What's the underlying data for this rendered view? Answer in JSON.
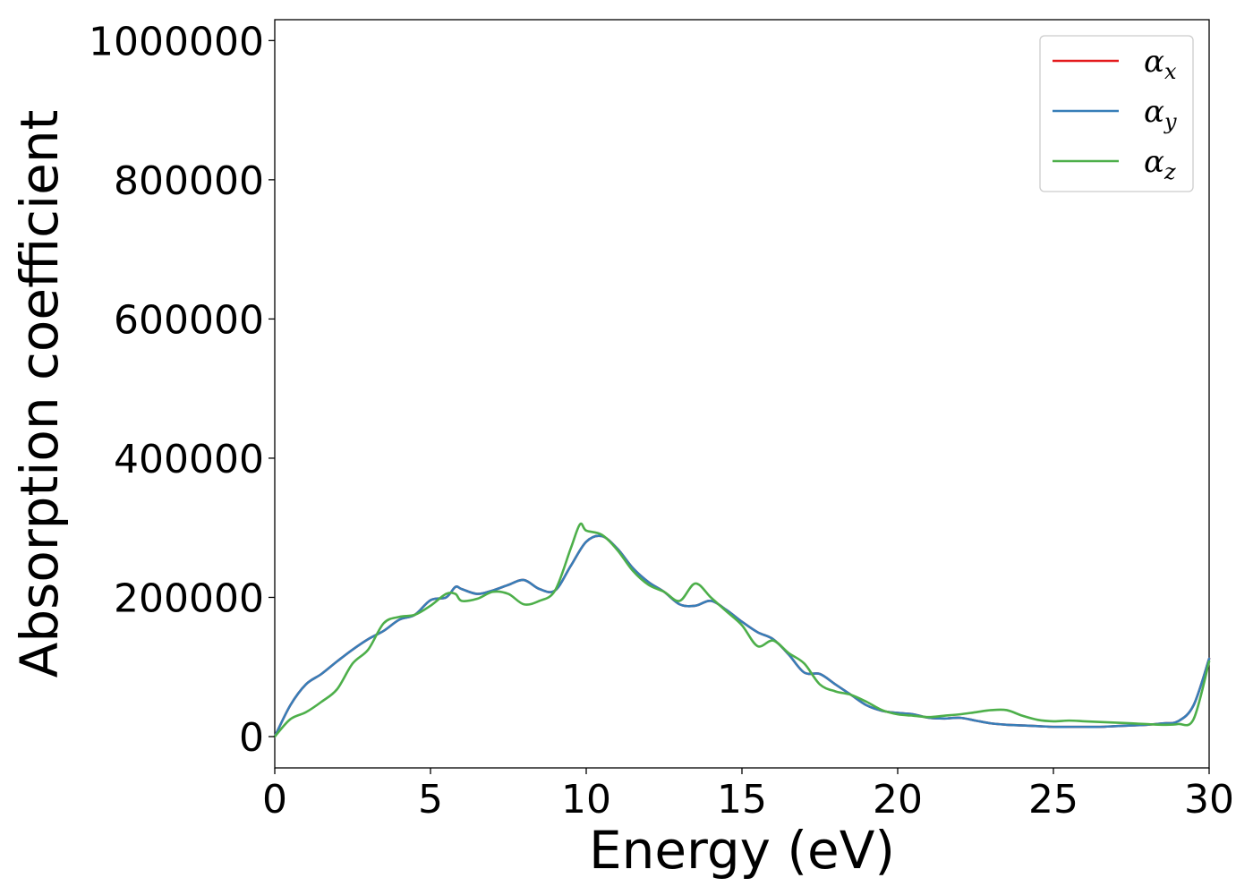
{
  "chart_data": {
    "type": "line",
    "title": "",
    "xlabel": "Energy (eV)",
    "ylabel": "Absorption coefficient",
    "xlim": [
      0,
      30
    ],
    "ylim": [
      -45000,
      1030000
    ],
    "xticks": [
      0,
      5,
      10,
      15,
      20,
      25,
      30
    ],
    "xtick_labels": [
      "0",
      "5",
      "10",
      "15",
      "20",
      "25",
      "30"
    ],
    "yticks": [
      0,
      200000,
      400000,
      600000,
      800000,
      1000000
    ],
    "ytick_labels": [
      "0",
      "200000",
      "400000",
      "600000",
      "800000",
      "1000000"
    ],
    "grid": false,
    "legend_position": "top-right",
    "series": [
      {
        "name": "αx",
        "legend_symbol": "α",
        "legend_subscript": "x",
        "color": "#e41a1c",
        "x": [
          0,
          0.5,
          1,
          1.5,
          2,
          2.5,
          3,
          3.5,
          4,
          4.5,
          5,
          5.5,
          5.8,
          6,
          6.5,
          7,
          7.5,
          8,
          8.5,
          9,
          9.5,
          10,
          10.5,
          11,
          11.5,
          12,
          12.5,
          13,
          13.5,
          14,
          14.5,
          15,
          15.5,
          16,
          16.5,
          17,
          17.5,
          18,
          18.5,
          19,
          19.5,
          20,
          20.5,
          21,
          21.5,
          22,
          22.5,
          23,
          23.5,
          24,
          24.5,
          25,
          25.5,
          26,
          26.5,
          27,
          27.5,
          28,
          28.5,
          29,
          29.5,
          30
        ],
        "y": [
          0,
          45000,
          75000,
          90000,
          108000,
          125000,
          140000,
          152000,
          168000,
          175000,
          196000,
          200000,
          215000,
          212000,
          205000,
          210000,
          218000,
          225000,
          212000,
          210000,
          245000,
          280000,
          288000,
          270000,
          242000,
          222000,
          208000,
          190000,
          188000,
          195000,
          182000,
          165000,
          150000,
          140000,
          118000,
          92000,
          90000,
          75000,
          60000,
          45000,
          37000,
          34000,
          32000,
          27000,
          26000,
          27000,
          23000,
          19000,
          17000,
          16000,
          15000,
          14000,
          14000,
          14000,
          14000,
          15000,
          16000,
          17000,
          19000,
          22000,
          45000,
          112000
        ]
      },
      {
        "name": "αy",
        "legend_symbol": "α",
        "legend_subscript": "y",
        "color": "#377eb8",
        "x": [
          0,
          0.5,
          1,
          1.5,
          2,
          2.5,
          3,
          3.5,
          4,
          4.5,
          5,
          5.5,
          5.8,
          6,
          6.5,
          7,
          7.5,
          8,
          8.5,
          9,
          9.5,
          10,
          10.5,
          11,
          11.5,
          12,
          12.5,
          13,
          13.5,
          14,
          14.5,
          15,
          15.5,
          16,
          16.5,
          17,
          17.5,
          18,
          18.5,
          19,
          19.5,
          20,
          20.5,
          21,
          21.5,
          22,
          22.5,
          23,
          23.5,
          24,
          24.5,
          25,
          25.5,
          26,
          26.5,
          27,
          27.5,
          28,
          28.5,
          29,
          29.5,
          30
        ],
        "y": [
          0,
          45000,
          75000,
          90000,
          108000,
          125000,
          140000,
          152000,
          168000,
          175000,
          196000,
          200000,
          215000,
          212000,
          205000,
          210000,
          218000,
          225000,
          212000,
          210000,
          245000,
          280000,
          288000,
          270000,
          242000,
          222000,
          208000,
          190000,
          188000,
          195000,
          182000,
          165000,
          150000,
          140000,
          118000,
          92000,
          90000,
          75000,
          60000,
          45000,
          37000,
          34000,
          32000,
          27000,
          26000,
          27000,
          23000,
          19000,
          17000,
          16000,
          15000,
          14000,
          14000,
          14000,
          14000,
          15000,
          16000,
          17000,
          19000,
          22000,
          45000,
          112000
        ]
      },
      {
        "name": "αz",
        "legend_symbol": "α",
        "legend_subscript": "z",
        "color": "#4daf4a",
        "x": [
          0,
          0.5,
          1,
          1.5,
          2,
          2.5,
          3,
          3.5,
          4,
          4.5,
          5,
          5.5,
          5.8,
          6,
          6.5,
          7,
          7.5,
          8,
          8.5,
          9,
          9.5,
          9.8,
          10,
          10.5,
          11,
          11.5,
          12,
          12.5,
          13,
          13.5,
          14,
          14.5,
          15,
          15.5,
          16,
          16.5,
          17,
          17.5,
          18,
          18.5,
          19,
          19.5,
          20,
          20.5,
          21,
          21.5,
          22,
          22.5,
          23,
          23.5,
          24,
          24.5,
          25,
          25.5,
          26,
          26.5,
          27,
          27.5,
          28,
          28.5,
          29,
          29.5,
          30
        ],
        "y": [
          0,
          25000,
          35000,
          50000,
          68000,
          105000,
          125000,
          163000,
          172000,
          175000,
          188000,
          205000,
          205000,
          195000,
          198000,
          208000,
          205000,
          190000,
          195000,
          210000,
          270000,
          305000,
          296000,
          290000,
          268000,
          238000,
          218000,
          208000,
          195000,
          220000,
          200000,
          180000,
          160000,
          130000,
          138000,
          120000,
          105000,
          75000,
          65000,
          60000,
          50000,
          38000,
          32000,
          30000,
          28000,
          30000,
          32000,
          35000,
          38000,
          38000,
          30000,
          24000,
          22000,
          23000,
          22000,
          21000,
          20000,
          19000,
          18000,
          17000,
          18000,
          25000,
          108000
        ]
      }
    ]
  }
}
